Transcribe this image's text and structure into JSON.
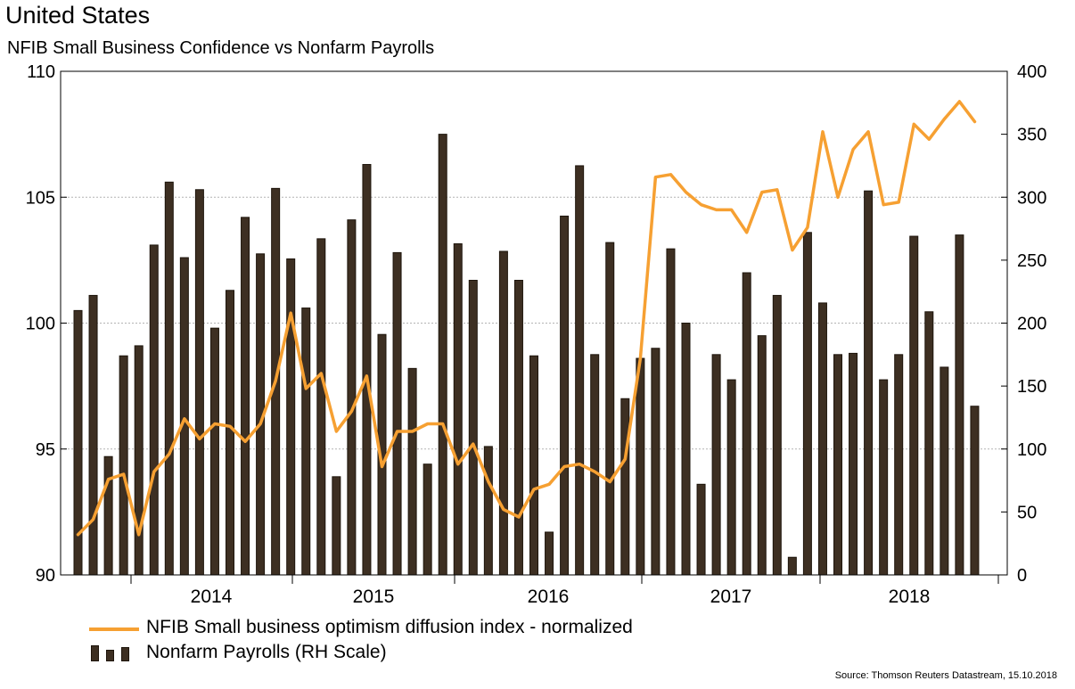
{
  "header": {
    "title": "United States",
    "subtitle": "NFIB Small Business Confidence vs Nonfarm Payrolls"
  },
  "legend": {
    "line_label": "NFIB Small business optimism diffusion index - normalized",
    "bars_label": "Nonfarm Payrolls (RH Scale)"
  },
  "source": "Source: Thomson Reuters Datastream, 15.10.2018",
  "colors": {
    "line": "#F6A032",
    "bar_fill": "#3d2f22",
    "bar_edge": "#1d140b",
    "grid": "#b4b4b4"
  },
  "chart_data": {
    "type": "bar+line",
    "title": "NFIB Small Business Confidence vs Nonfarm Payrolls",
    "x_ticks": [
      "2014",
      "2015",
      "2016",
      "2017",
      "2018"
    ],
    "left_axis": {
      "range": [
        90,
        110
      ],
      "ticks": [
        90,
        95,
        100,
        105,
        110
      ]
    },
    "right_axis": {
      "range": [
        0,
        400
      ],
      "ticks": [
        0,
        50,
        100,
        150,
        200,
        250,
        300,
        350,
        400
      ]
    },
    "grid": true,
    "series": [
      {
        "name": "NFIB Small business optimism diffusion index - normalized",
        "kind": "line",
        "axis": "left",
        "values": [
          91.6,
          92.2,
          93.8,
          94.0,
          91.6,
          94.1,
          94.8,
          96.2,
          95.4,
          96.0,
          95.9,
          95.3,
          96.0,
          97.7,
          100.4,
          97.4,
          98.0,
          95.7,
          96.5,
          97.9,
          94.3,
          95.7,
          95.7,
          96.0,
          96.0,
          94.4,
          95.2,
          93.7,
          92.6,
          92.3,
          93.4,
          93.6,
          94.3,
          94.4,
          94.1,
          93.7,
          94.6,
          98.6,
          105.8,
          105.9,
          105.2,
          104.7,
          104.5,
          104.5,
          103.6,
          105.2,
          105.3,
          102.9,
          103.8,
          107.6,
          105.0,
          106.9,
          107.6,
          104.7,
          104.8,
          107.9,
          107.3,
          108.1,
          108.8,
          108.0
        ]
      },
      {
        "name": "Nonfarm Payrolls (RH Scale)",
        "kind": "bar",
        "axis": "right",
        "values": [
          210,
          222,
          94,
          174,
          182,
          262,
          312,
          252,
          306,
          196,
          226,
          284,
          255,
          307,
          251,
          212,
          267,
          78,
          282,
          326,
          191,
          256,
          164,
          88,
          350,
          263,
          234,
          102,
          257,
          234,
          174,
          34,
          285,
          325,
          175,
          264,
          140,
          172,
          180,
          259,
          200,
          72,
          175,
          155,
          240,
          190,
          222,
          14,
          272,
          216,
          175,
          176,
          305,
          155,
          175,
          269,
          209,
          165,
          270,
          134
        ]
      }
    ]
  }
}
